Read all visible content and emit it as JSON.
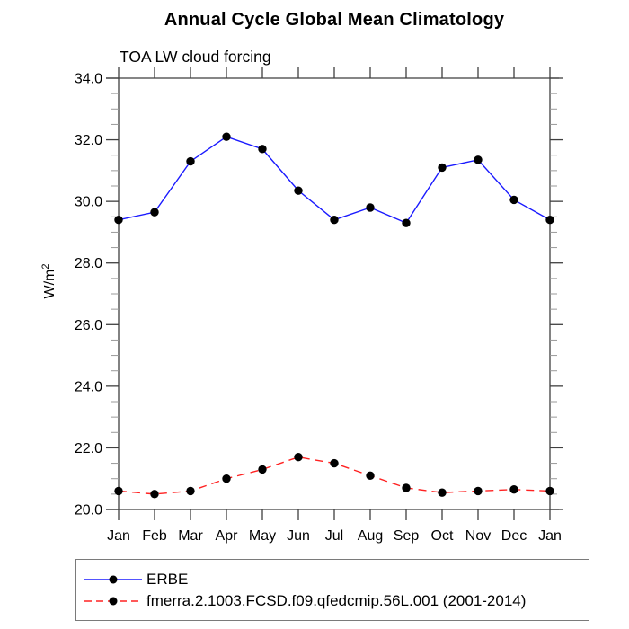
{
  "chart_data": {
    "type": "line",
    "title": "Annual Cycle Global Mean Climatology",
    "subtitle": "TOA LW cloud forcing",
    "ylabel": {
      "base": "W/m",
      "exp": "2"
    },
    "categories": [
      "Jan",
      "Feb",
      "Mar",
      "Apr",
      "May",
      "Jun",
      "Jul",
      "Aug",
      "Sep",
      "Oct",
      "Nov",
      "Dec",
      "Jan"
    ],
    "ylim": [
      20.0,
      34.0
    ],
    "ytick_step": 2.0,
    "minor_tick_step": 0.5,
    "ytick_labels": [
      "20.0",
      "22.0",
      "24.0",
      "26.0",
      "28.0",
      "30.0",
      "32.0",
      "34.0"
    ],
    "grid": false,
    "legend_position": "bottom",
    "axis_color": "#3f3f3f",
    "minor_tick_color": "#999999",
    "series": [
      {
        "name": "ERBE",
        "color": "#1a1aff",
        "line_style": "solid",
        "marker": "circle",
        "marker_color": "#000000",
        "values": [
          29.4,
          29.65,
          31.3,
          32.1,
          31.7,
          30.35,
          29.4,
          29.8,
          29.3,
          31.1,
          31.35,
          30.05,
          29.4
        ]
      },
      {
        "name": "fmerra.2.1003.FCSD.f09.qfedcmip.56L.001 (2001-2014)",
        "color": "#ff2222",
        "line_style": "dashed",
        "marker": "circle",
        "marker_color": "#000000",
        "values": [
          20.6,
          20.5,
          20.6,
          21.0,
          21.3,
          21.7,
          21.5,
          21.1,
          20.7,
          20.55,
          20.6,
          20.65,
          20.6
        ]
      }
    ]
  }
}
